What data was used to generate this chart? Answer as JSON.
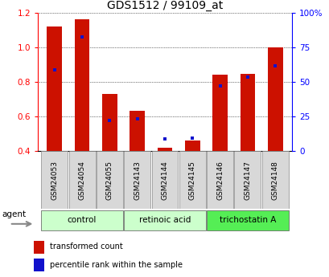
{
  "title": "GDS1512 / 99109_at",
  "categories": [
    "GSM24053",
    "GSM24054",
    "GSM24055",
    "GSM24143",
    "GSM24144",
    "GSM24145",
    "GSM24146",
    "GSM24147",
    "GSM24148"
  ],
  "red_values": [
    1.12,
    1.16,
    0.73,
    0.63,
    0.42,
    0.46,
    0.84,
    0.845,
    1.0
  ],
  "blue_values_left_scale": [
    0.87,
    1.06,
    0.575,
    0.585,
    0.47,
    0.475,
    0.775,
    0.825,
    0.89
  ],
  "ylim_left": [
    0.4,
    1.2
  ],
  "ylim_right": [
    0,
    100
  ],
  "yticks_left": [
    0.4,
    0.6,
    0.8,
    1.0,
    1.2
  ],
  "yticks_right": [
    0,
    25,
    50,
    75,
    100
  ],
  "ytick_labels_right": [
    "0",
    "25",
    "50",
    "75",
    "100%"
  ],
  "group_labels": [
    "control",
    "retinoic acid",
    "trichostatin A"
  ],
  "group_ranges": [
    [
      0,
      2
    ],
    [
      3,
      5
    ],
    [
      6,
      8
    ]
  ],
  "group_colors": [
    "#ccffcc",
    "#ccffcc",
    "#55ee55"
  ],
  "bar_color": "#cc1100",
  "blue_color": "#1111cc",
  "bar_width": 0.55,
  "bg_color": "#ffffff",
  "plot_bg": "#ffffff",
  "agent_label": "agent",
  "legend_red": "transformed count",
  "legend_blue": "percentile rank within the sample",
  "title_fontsize": 10,
  "tick_fontsize": 7.5,
  "cat_fontsize": 6.5,
  "group_fontsize": 7.5,
  "legend_fontsize": 7
}
